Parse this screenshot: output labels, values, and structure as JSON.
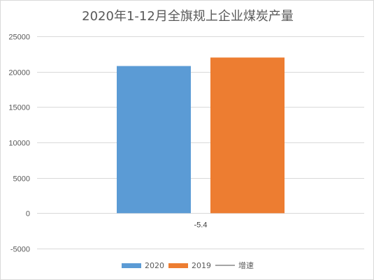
{
  "chart_data": {
    "type": "bar",
    "title": "2020年1-12月全旗规上企业煤炭产量",
    "categories": [
      ""
    ],
    "series": [
      {
        "name": "2020",
        "values": [
          20800
        ],
        "color": "#5b9bd5",
        "type": "bar"
      },
      {
        "name": "2019",
        "values": [
          22000
        ],
        "color": "#ed7d31",
        "type": "bar"
      },
      {
        "name": "增速",
        "values": [
          -5.4
        ],
        "color": "#a5a5a5",
        "type": "line"
      }
    ],
    "data_labels": [
      "-5.4"
    ],
    "ylim": [
      -5000,
      25000
    ],
    "yticks": [
      "-5000",
      "0",
      "5000",
      "10000",
      "15000",
      "20000",
      "25000"
    ],
    "grid": true,
    "legend": "bottom"
  }
}
